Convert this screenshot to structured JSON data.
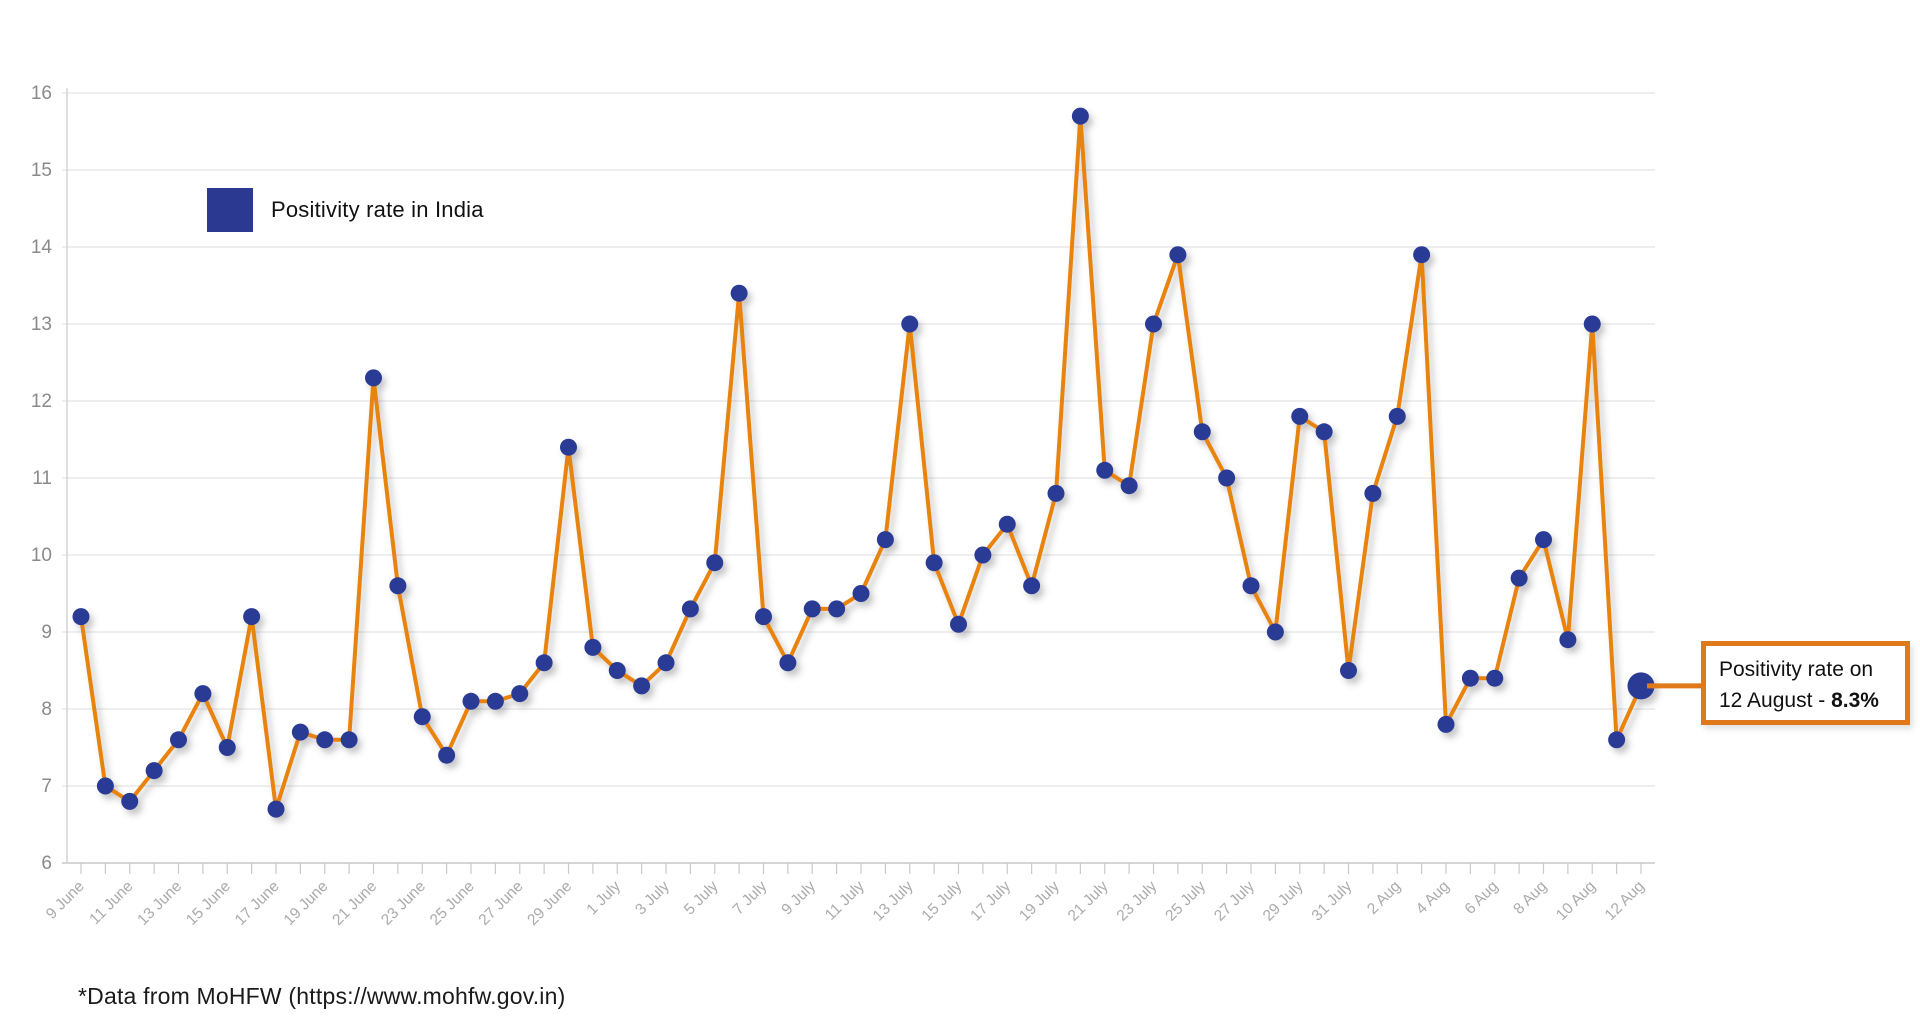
{
  "chart_data": {
    "type": "line",
    "title": "",
    "series_name": "Positivity rate in India",
    "x": [
      "9 June",
      "10 June",
      "11 June",
      "12 June",
      "13 June",
      "14 June",
      "15 June",
      "16 June",
      "17 June",
      "18 June",
      "19 June",
      "20 June",
      "21 June",
      "22 June",
      "23 June",
      "24 June",
      "25 June",
      "26 June",
      "27 June",
      "28 June",
      "29 June",
      "30 June",
      "1 July",
      "2 July",
      "3 July",
      "4 July",
      "5 July",
      "6 July",
      "7 July",
      "8 July",
      "9 July",
      "10 July",
      "11 July",
      "12 July",
      "13 July",
      "14 July",
      "15 July",
      "16 July",
      "17 July",
      "18 July",
      "19 July",
      "20 July",
      "21 July",
      "22 July",
      "23 July",
      "24 July",
      "25 July",
      "26 July",
      "27 July",
      "28 July",
      "29 July",
      "30 July",
      "31 July",
      "1 Aug",
      "2 Aug",
      "3 Aug",
      "4 Aug",
      "5 Aug",
      "6 Aug",
      "7 Aug",
      "8 Aug",
      "9 Aug",
      "10 Aug",
      "11 Aug",
      "12 Aug"
    ],
    "values": [
      9.2,
      7.0,
      6.8,
      7.2,
      7.6,
      8.2,
      7.5,
      9.2,
      6.7,
      7.7,
      7.6,
      7.6,
      12.3,
      9.6,
      7.9,
      7.4,
      8.1,
      8.1,
      8.2,
      8.6,
      11.4,
      8.8,
      8.5,
      8.3,
      8.6,
      9.3,
      9.9,
      13.4,
      9.2,
      8.6,
      9.3,
      9.3,
      9.5,
      10.2,
      13.0,
      9.9,
      9.1,
      10.0,
      10.4,
      9.6,
      10.8,
      15.7,
      11.1,
      10.9,
      13.0,
      13.9,
      11.6,
      11.0,
      9.6,
      9.0,
      11.8,
      11.6,
      8.5,
      10.8,
      11.8,
      13.9,
      7.8,
      8.4,
      8.4,
      9.7,
      10.2,
      8.9,
      13.0,
      7.6,
      8.3
    ],
    "ylim": [
      6,
      16
    ],
    "y_ticks": [
      6,
      7,
      8,
      9,
      10,
      11,
      12,
      13,
      14,
      15,
      16
    ],
    "x_label_every": 2,
    "grid": true,
    "legend_position": "top-left-inside",
    "line_color": "#E8830F",
    "marker_color": "#2B3B96",
    "grid_color": "#E9E9E9",
    "axis_color": "#C9C9C9",
    "y_label_color": "#8A8A8A",
    "x_label_color": "#ABABAB",
    "highlight_index": 64,
    "highlight_value_label": "8.3%"
  },
  "legend": {
    "label": "Positivity rate in India",
    "swatch_color": "#2B3990"
  },
  "annotation": {
    "line1": "Positivity rate on",
    "line2_prefix": "12 August - ",
    "line2_value": "8.3%",
    "border_color": "#E0791A"
  },
  "footer": {
    "text": "*Data from MoHFW (https://www.mohfw.gov.in)"
  }
}
